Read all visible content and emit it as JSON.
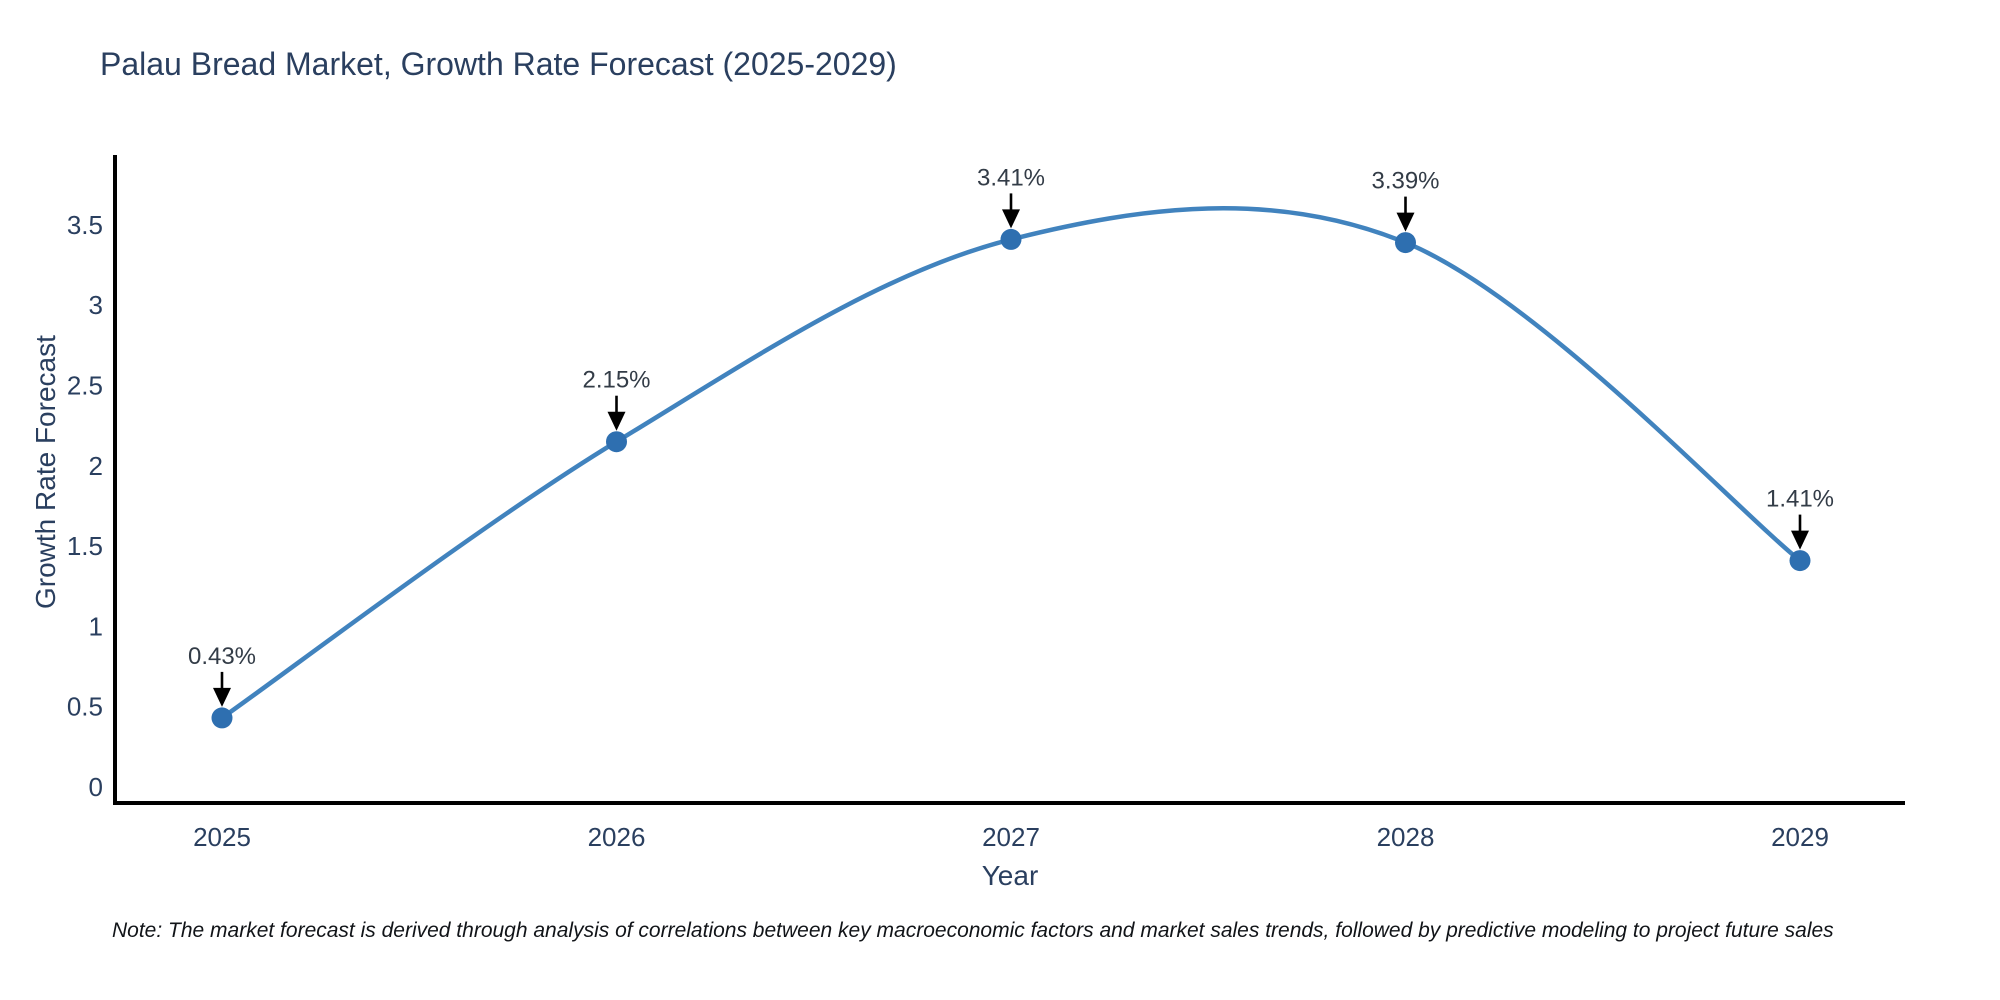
{
  "chart_data": {
    "type": "line",
    "title": "Palau Bread Market, Growth Rate Forecast (2025-2029)",
    "xlabel": "Year",
    "ylabel": "Growth Rate Forecast",
    "categories": [
      "2025",
      "2026",
      "2027",
      "2028",
      "2029"
    ],
    "values": [
      0.43,
      2.15,
      3.41,
      3.39,
      1.41
    ],
    "point_labels": [
      "0.43%",
      "2.15%",
      "3.41%",
      "3.39%",
      "1.41%"
    ],
    "yticks": [
      "0",
      "0.5",
      "1",
      "1.5",
      "2",
      "2.5",
      "3",
      "3.5"
    ],
    "ytick_values": [
      0,
      0.5,
      1,
      1.5,
      2,
      2.5,
      3,
      3.5
    ],
    "ylim": [
      0,
      3.5
    ],
    "line_shape": "spline",
    "grid": false,
    "legend": "none",
    "annotation_arrows": "black-down-arrow-to-marker",
    "colors": {
      "line": "#4183be",
      "marker": "#2e6fb0",
      "axis": "#000000",
      "tick_text": "#2a3f5f",
      "annotation_text": "#333c47",
      "title_text": "#2a3f5f",
      "note_text": "#111418",
      "background": "#ffffff"
    },
    "note": "Note: The market forecast is derived through analysis of correlations between key macroeconomic factors and market sales trends, followed by predictive modeling to project future sales"
  }
}
